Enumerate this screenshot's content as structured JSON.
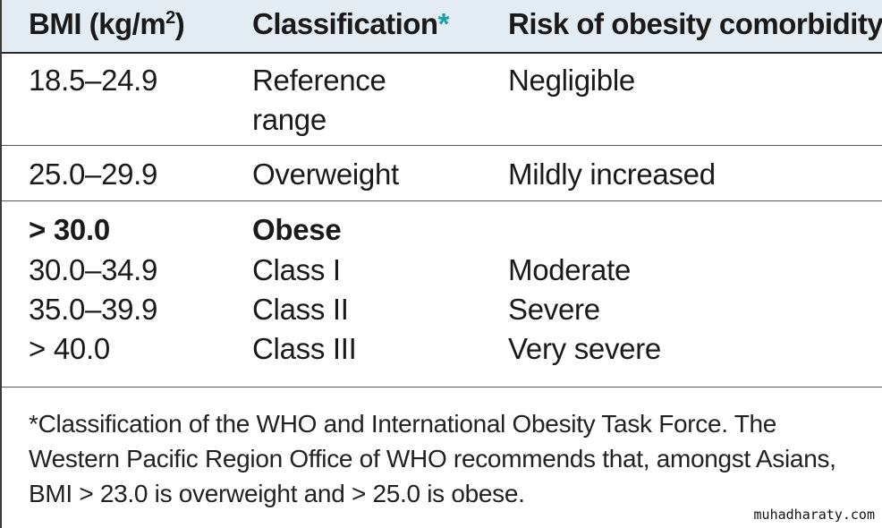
{
  "header": {
    "col1_main": "BMI (kg/m",
    "col1_sup": "2",
    "col1_close": ")",
    "col2_main": "Classification",
    "col2_asterisk": "*",
    "col3": "Risk of obesity comorbidity"
  },
  "rows": [
    {
      "bmi": "18.5–24.9",
      "classification_line1": "Reference",
      "classification_line2": "range",
      "risk": "Negligible"
    },
    {
      "bmi": "25.0–29.9",
      "classification": "Overweight",
      "risk": "Mildly increased"
    },
    {
      "bmi": "> 30.0",
      "classification": "Obese",
      "risk": ""
    },
    {
      "bmi": "30.0–34.9",
      "classification": "Class I",
      "risk": "Moderate"
    },
    {
      "bmi": "35.0–39.9",
      "classification": "Class II",
      "risk": "Severe"
    },
    {
      "bmi": "> 40.0",
      "classification": "Class III",
      "risk": "Very severe"
    }
  ],
  "footnote": "*Classification of the WHO and International Obesity Task Force. The Western Pacific Region Office of WHO recommends that, amongst Asians, BMI > 23.0 is overweight and > 25.0 is obese.",
  "watermark": "muhadharaty.com",
  "colors": {
    "header_bg": "#e4ecf3",
    "asterisk": "#1aa0a8"
  }
}
